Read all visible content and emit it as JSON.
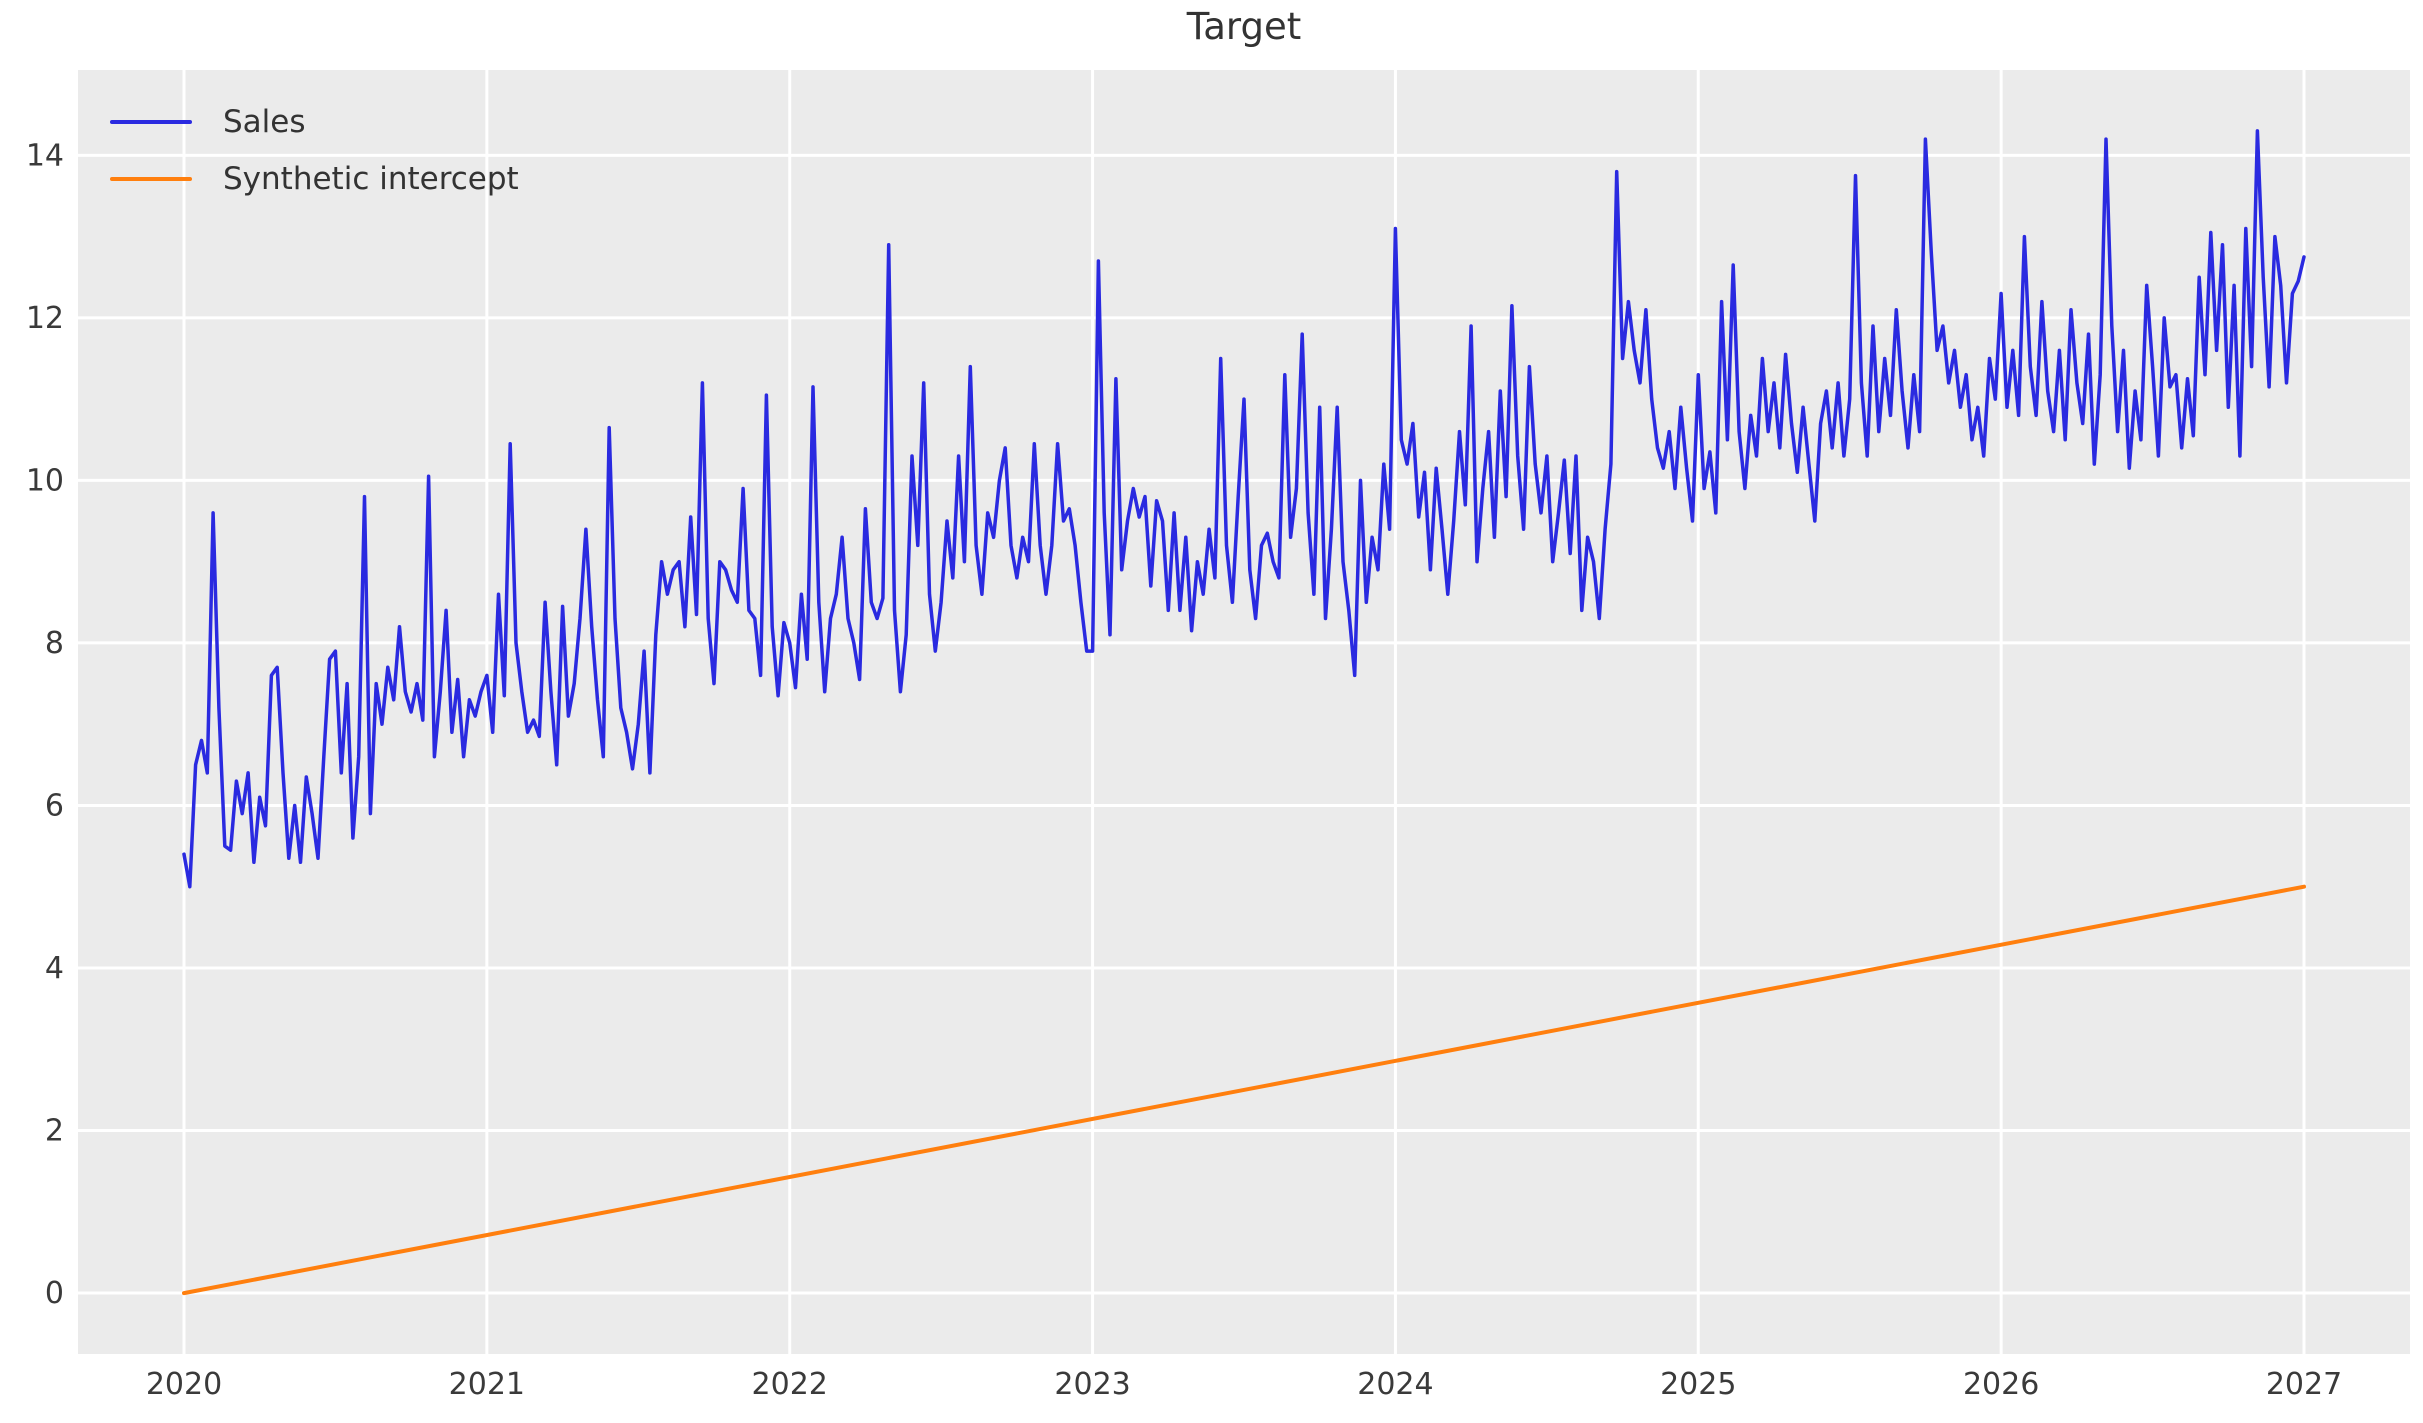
{
  "title": "Target",
  "legend": {
    "items": [
      {
        "label": "Sales",
        "color": "#2a2ae0"
      },
      {
        "label": "Synthetic intercept",
        "color": "#ff7f0e"
      }
    ]
  },
  "chart_data": {
    "type": "line",
    "title": "Target",
    "xlabel": "",
    "ylabel": "",
    "grid": true,
    "legend_position": "upper left",
    "plot_bg": "#ebebeb",
    "grid_color": "#ffffff",
    "tick_color": "#3a3a3a",
    "xlim": [
      2019.65,
      2027.35
    ],
    "ylim": [
      -0.75,
      15.05
    ],
    "xticks": [
      2020,
      2021,
      2022,
      2023,
      2024,
      2025,
      2026,
      2027
    ],
    "xtick_labels": [
      "2020",
      "2021",
      "2022",
      "2023",
      "2024",
      "2025",
      "2026",
      "2027"
    ],
    "yticks": [
      0,
      2,
      4,
      6,
      8,
      10,
      12,
      14
    ],
    "ytick_labels": [
      "0",
      "2",
      "4",
      "6",
      "8",
      "10",
      "12",
      "14"
    ],
    "series": [
      {
        "name": "Sales",
        "color": "#2a2ae0",
        "line_width": 3.5,
        "x_start": 2020,
        "x_step": 0.0192307692,
        "values": [
          5.4,
          5.0,
          6.5,
          6.8,
          6.4,
          9.6,
          7.2,
          5.5,
          5.45,
          6.3,
          5.9,
          6.4,
          5.3,
          6.1,
          5.75,
          7.6,
          7.7,
          6.4,
          5.35,
          6.0,
          5.3,
          6.35,
          5.9,
          5.35,
          6.6,
          7.8,
          7.9,
          6.4,
          7.5,
          5.6,
          6.6,
          9.8,
          5.9,
          7.5,
          7.0,
          7.7,
          7.3,
          8.2,
          7.4,
          7.15,
          7.5,
          7.05,
          10.05,
          6.6,
          7.4,
          8.4,
          6.9,
          7.55,
          6.6,
          7.3,
          7.1,
          7.4,
          7.6,
          6.9,
          8.6,
          7.35,
          10.45,
          8.0,
          7.4,
          6.9,
          7.05,
          6.85,
          8.5,
          7.4,
          6.5,
          8.45,
          7.1,
          7.5,
          8.3,
          9.4,
          8.2,
          7.3,
          6.6,
          10.65,
          8.3,
          7.2,
          6.9,
          6.45,
          7.0,
          7.9,
          6.4,
          8.1,
          9.0,
          8.6,
          8.9,
          9.0,
          8.2,
          9.55,
          8.35,
          11.2,
          8.3,
          7.5,
          9.0,
          8.9,
          8.65,
          8.5,
          9.9,
          8.4,
          8.3,
          7.6,
          11.05,
          8.2,
          7.35,
          8.25,
          8.0,
          7.45,
          8.6,
          7.8,
          11.15,
          8.5,
          7.4,
          8.3,
          8.6,
          9.3,
          8.3,
          8.0,
          7.55,
          9.65,
          8.5,
          8.3,
          8.55,
          12.9,
          8.4,
          7.4,
          8.1,
          10.3,
          9.2,
          11.2,
          8.6,
          7.9,
          8.5,
          9.5,
          8.8,
          10.3,
          9.0,
          11.4,
          9.2,
          8.6,
          9.6,
          9.3,
          10.0,
          10.4,
          9.2,
          8.8,
          9.3,
          9.0,
          10.45,
          9.2,
          8.6,
          9.2,
          10.45,
          9.5,
          9.65,
          9.2,
          8.5,
          7.9,
          7.9,
          12.7,
          9.6,
          8.1,
          11.25,
          8.9,
          9.5,
          9.9,
          9.55,
          9.8,
          8.7,
          9.75,
          9.5,
          8.4,
          9.6,
          8.4,
          9.3,
          8.15,
          9.0,
          8.6,
          9.4,
          8.8,
          11.5,
          9.2,
          8.5,
          9.8,
          11.0,
          8.9,
          8.3,
          9.2,
          9.35,
          9.0,
          8.8,
          11.3,
          9.3,
          9.9,
          11.8,
          9.6,
          8.6,
          10.9,
          8.3,
          9.4,
          10.9,
          9.0,
          8.4,
          7.6,
          10.0,
          8.5,
          9.3,
          8.9,
          10.2,
          9.4,
          13.1,
          10.5,
          10.2,
          10.7,
          9.55,
          10.1,
          8.9,
          10.15,
          9.4,
          8.6,
          9.5,
          10.6,
          9.7,
          11.9,
          9.0,
          9.9,
          10.6,
          9.3,
          11.1,
          9.8,
          12.15,
          10.3,
          9.4,
          11.4,
          10.2,
          9.6,
          10.3,
          9.0,
          9.6,
          10.25,
          9.1,
          10.3,
          8.4,
          9.3,
          9.0,
          8.3,
          9.4,
          10.2,
          13.8,
          11.5,
          12.2,
          11.6,
          11.2,
          12.1,
          11.0,
          10.4,
          10.15,
          10.6,
          9.9,
          10.9,
          10.15,
          9.5,
          11.3,
          9.9,
          10.35,
          9.6,
          12.2,
          10.5,
          12.65,
          10.6,
          9.9,
          10.8,
          10.3,
          11.5,
          10.6,
          11.2,
          10.4,
          11.55,
          10.7,
          10.1,
          10.9,
          10.2,
          9.5,
          10.7,
          11.1,
          10.4,
          11.2,
          10.3,
          11.0,
          13.75,
          11.2,
          10.3,
          11.9,
          10.6,
          11.5,
          10.8,
          12.1,
          11.1,
          10.4,
          11.3,
          10.6,
          14.2,
          12.8,
          11.6,
          11.9,
          11.2,
          11.6,
          10.9,
          11.3,
          10.5,
          10.9,
          10.3,
          11.5,
          11.0,
          12.3,
          10.9,
          11.6,
          10.8,
          13.0,
          11.4,
          10.8,
          12.2,
          11.1,
          10.6,
          11.6,
          10.5,
          12.1,
          11.2,
          10.7,
          11.8,
          10.2,
          11.3,
          14.2,
          11.9,
          10.6,
          11.6,
          10.15,
          11.1,
          10.5,
          12.4,
          11.4,
          10.3,
          12.0,
          11.15,
          11.3,
          10.4,
          11.25,
          10.55,
          12.5,
          11.3,
          13.05,
          11.6,
          12.9,
          10.9,
          12.4,
          10.3,
          13.1,
          11.4,
          14.3,
          12.5,
          11.15,
          13.0,
          12.4,
          11.2,
          12.3,
          12.45,
          12.75
        ]
      },
      {
        "name": "Synthetic intercept",
        "color": "#ff7f0e",
        "line_width": 4,
        "x": [
          2020,
          2027
        ],
        "values": [
          0,
          5
        ]
      }
    ]
  }
}
